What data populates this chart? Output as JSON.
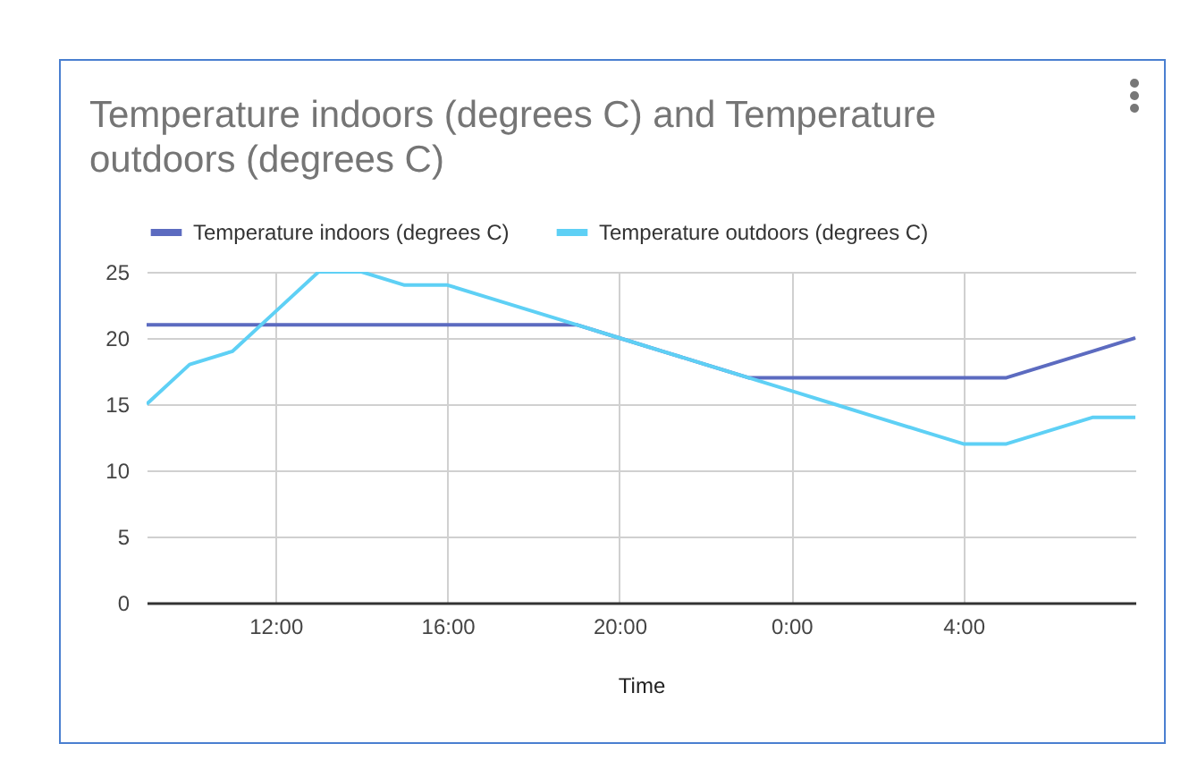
{
  "chart_data": {
    "type": "line",
    "title": "Temperature indoors (degrees C) and Temperature outdoors (degrees C)",
    "xlabel": "Time",
    "categories": [
      null,
      null,
      null,
      "12:00",
      null,
      null,
      null,
      "16:00",
      null,
      null,
      null,
      "20:00",
      null,
      null,
      null,
      "0:00",
      null,
      null,
      null,
      "4:00",
      null,
      null,
      null,
      null
    ],
    "series": [
      {
        "name": "Temperature indoors (degrees C)",
        "color": "#5c6bc0",
        "values": [
          21,
          21,
          21,
          21,
          21,
          21,
          21,
          21,
          21,
          21,
          21,
          20,
          19,
          18,
          17,
          17,
          17,
          17,
          17,
          17,
          17,
          18,
          19,
          20
        ]
      },
      {
        "name": "Temperature outdoors (degrees C)",
        "color": "#5ed0f5",
        "values": [
          15,
          18,
          19,
          22,
          25,
          25,
          24,
          24,
          23,
          22,
          21,
          20,
          19,
          18,
          17,
          16,
          15,
          14,
          13,
          12,
          12,
          13,
          14,
          14
        ]
      }
    ],
    "ylim": [
      0,
      25
    ],
    "yticks": [
      0,
      5,
      10,
      15,
      20,
      25
    ],
    "grid": true,
    "legend": "top",
    "marker": "none",
    "line_style": "solid"
  }
}
